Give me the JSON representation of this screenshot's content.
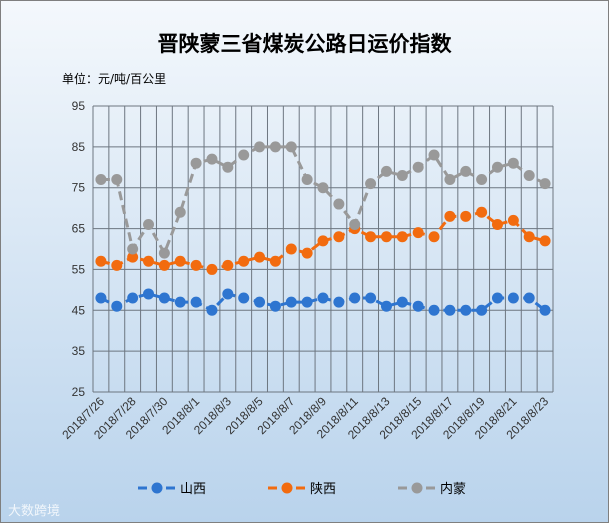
{
  "chart_data": {
    "type": "line",
    "title": "晋陕蒙三省煤炭公路日运价指数",
    "unit_label": "单位：元/吨/百公里",
    "ylim": [
      25,
      95
    ],
    "yticks": [
      25,
      35,
      45,
      55,
      65,
      75,
      85,
      95
    ],
    "grid": true,
    "legend_position": "bottom",
    "categories": [
      "2018/7/26",
      "2018/7/27",
      "2018/7/28",
      "2018/7/29",
      "2018/7/30",
      "2018/7/31",
      "2018/8/1",
      "2018/8/2",
      "2018/8/3",
      "2018/8/4",
      "2018/8/5",
      "2018/8/6",
      "2018/8/7",
      "2018/8/8",
      "2018/8/9",
      "2018/8/10",
      "2018/8/11",
      "2018/8/12",
      "2018/8/13",
      "2018/8/14",
      "2018/8/15",
      "2018/8/16",
      "2018/8/17",
      "2018/8/18",
      "2018/8/19",
      "2018/8/20",
      "2018/8/21",
      "2018/8/22",
      "2018/8/23"
    ],
    "xtick_labels": [
      "2018/7/26",
      "2018/7/28",
      "2018/7/30",
      "2018/8/1",
      "2018/8/3",
      "2018/8/5",
      "2018/8/7",
      "2018/8/9",
      "2018/8/11",
      "2018/8/13",
      "2018/8/15",
      "2018/8/17",
      "2018/8/19",
      "2018/8/21",
      "2018/8/23"
    ],
    "series": [
      {
        "name": "山西",
        "color": "#2e75d0",
        "values": [
          48,
          46,
          48,
          49,
          48,
          47,
          47,
          45,
          49,
          48,
          47,
          46,
          47,
          47,
          48,
          47,
          48,
          48,
          46,
          47,
          46,
          45,
          45,
          45,
          45,
          48,
          48,
          48,
          45
        ]
      },
      {
        "name": "陕西",
        "color": "#f26b0f",
        "values": [
          57,
          56,
          58,
          57,
          56,
          57,
          56,
          55,
          56,
          57,
          58,
          57,
          60,
          59,
          62,
          63,
          65,
          63,
          63,
          63,
          64,
          63,
          68,
          68,
          69,
          66,
          67,
          63,
          62
        ]
      },
      {
        "name": "内蒙",
        "color": "#999999",
        "values": [
          77,
          77,
          60,
          66,
          59,
          69,
          81,
          82,
          80,
          83,
          85,
          85,
          85,
          77,
          75,
          71,
          66,
          76,
          79,
          78,
          80,
          83,
          77,
          79,
          77,
          80,
          81,
          78,
          76
        ]
      }
    ]
  },
  "watermark": "大数跨境"
}
